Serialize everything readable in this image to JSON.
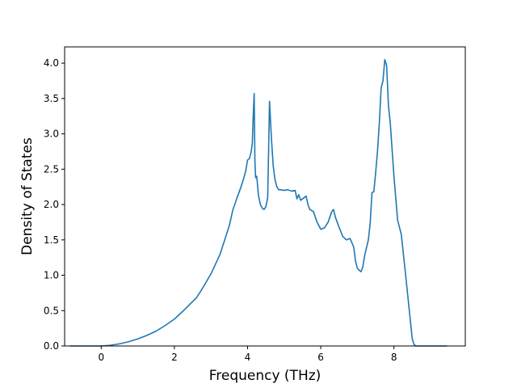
{
  "chart_data": {
    "type": "line",
    "title": "",
    "xlabel": "Frequency (THz)",
    "ylabel": "Density of States",
    "xlim": [
      -1.0,
      9.95
    ],
    "ylim": [
      0.0,
      4.23
    ],
    "xticks": [
      0,
      2,
      4,
      6,
      8
    ],
    "xtick_labels": [
      "0",
      "2",
      "4",
      "6",
      "8"
    ],
    "yticks": [
      0.0,
      0.5,
      1.0,
      1.5,
      2.0,
      2.5,
      3.0,
      3.5,
      4.0
    ],
    "ytick_labels": [
      "0.0",
      "0.5",
      "1.0",
      "1.5",
      "2.0",
      "2.5",
      "3.0",
      "3.5",
      "4.0"
    ],
    "grid": false,
    "legend": "none",
    "line_color": "#1f77b4",
    "series": [
      {
        "x": [
          -0.85,
          -0.5,
          0.0,
          0.25,
          0.5,
          0.75,
          1.0,
          1.25,
          1.5,
          1.75,
          2.0,
          2.25,
          2.5,
          2.6,
          2.75,
          3.0,
          3.25,
          3.5,
          3.6,
          3.65,
          3.7,
          3.8,
          3.9,
          3.95,
          4.0,
          4.05,
          4.1,
          4.13,
          4.15,
          4.18,
          4.2,
          4.22,
          4.25,
          4.3,
          4.35,
          4.4,
          4.45,
          4.5,
          4.55,
          4.6,
          4.65,
          4.7,
          4.75,
          4.8,
          4.85,
          4.9,
          5.0,
          5.1,
          5.2,
          5.3,
          5.35,
          5.4,
          5.45,
          5.5,
          5.6,
          5.65,
          5.7,
          5.8,
          5.9,
          6.0,
          6.1,
          6.2,
          6.3,
          6.35,
          6.4,
          6.5,
          6.6,
          6.7,
          6.8,
          6.9,
          6.95,
          7.0,
          7.05,
          7.1,
          7.15,
          7.2,
          7.3,
          7.35,
          7.4,
          7.45,
          7.5,
          7.55,
          7.6,
          7.65,
          7.7,
          7.75,
          7.8,
          7.85,
          7.9,
          8.0,
          8.1,
          8.2,
          8.3,
          8.4,
          8.5,
          8.55,
          8.6,
          8.7,
          8.8,
          9.0,
          9.45
        ],
        "y": [
          0.0,
          0.0,
          0.0,
          0.01,
          0.03,
          0.06,
          0.1,
          0.15,
          0.21,
          0.29,
          0.38,
          0.5,
          0.63,
          0.68,
          0.8,
          1.02,
          1.3,
          1.7,
          1.93,
          2.0,
          2.08,
          2.22,
          2.38,
          2.48,
          2.63,
          2.65,
          2.75,
          2.87,
          3.2,
          3.57,
          2.62,
          2.38,
          2.4,
          2.12,
          2.0,
          1.95,
          1.93,
          1.97,
          2.1,
          3.46,
          2.95,
          2.55,
          2.35,
          2.25,
          2.21,
          2.21,
          2.2,
          2.21,
          2.19,
          2.2,
          2.08,
          2.14,
          2.06,
          2.08,
          2.12,
          2.0,
          1.93,
          1.9,
          1.75,
          1.65,
          1.67,
          1.75,
          1.9,
          1.93,
          1.82,
          1.68,
          1.55,
          1.5,
          1.52,
          1.4,
          1.2,
          1.1,
          1.07,
          1.05,
          1.12,
          1.28,
          1.5,
          1.73,
          2.17,
          2.18,
          2.45,
          2.75,
          3.15,
          3.65,
          3.75,
          4.05,
          3.97,
          3.4,
          3.15,
          2.4,
          1.78,
          1.58,
          1.1,
          0.6,
          0.1,
          0.02,
          0.0,
          0.0,
          0.0,
          0.0,
          0.0
        ]
      }
    ]
  }
}
